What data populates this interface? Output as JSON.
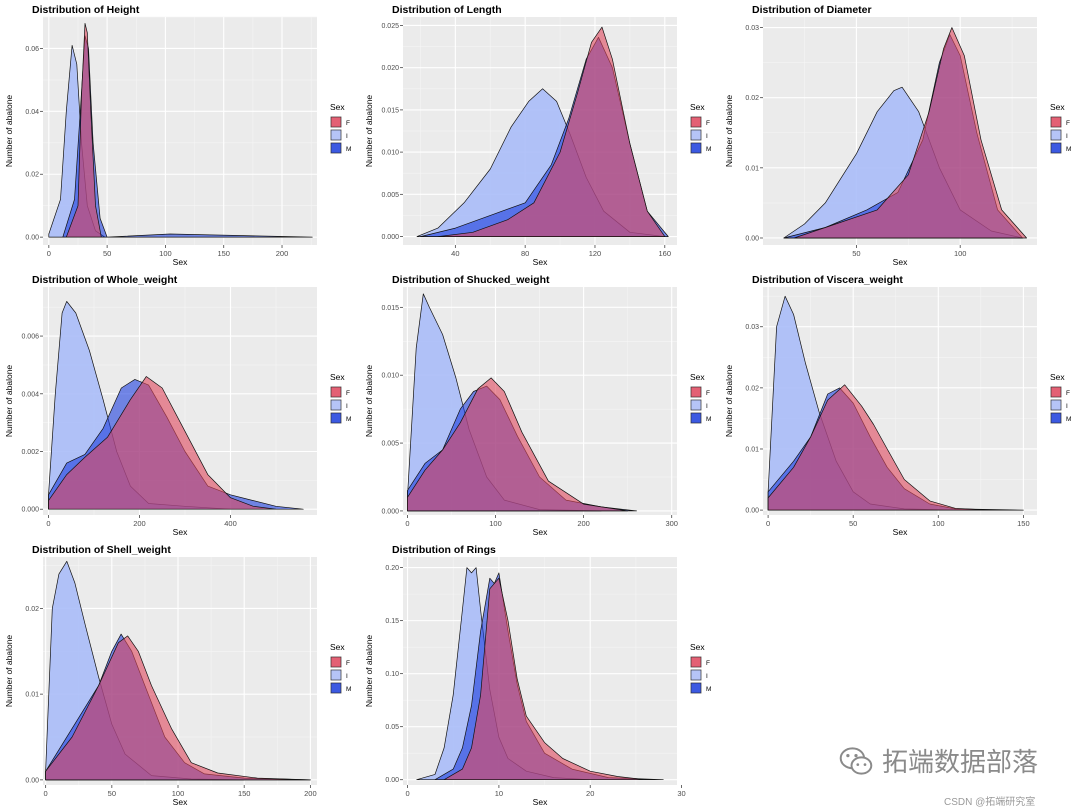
{
  "watermark": {
    "text": "拓端数据部落",
    "csdn": "CSDN @拓端研究室"
  },
  "legend": {
    "title": "Sex",
    "labels": [
      "F",
      "I",
      "M"
    ]
  },
  "colors": {
    "F": "#e0475e",
    "I": "#aabcf8",
    "M": "#1c3ede",
    "panel": "#ebebeb",
    "grid": "#ffffff"
  },
  "chart_data": [
    {
      "type": "area",
      "title": "Distribution of Height",
      "xlabel": "Sex",
      "ylabel": "Number of abalone",
      "xlim": [
        -5,
        230
      ],
      "ylim": [
        -0.0025,
        0.07
      ],
      "xticks": [
        0,
        50,
        100,
        150,
        200
      ],
      "yticks": [
        0,
        0.02,
        0.04,
        0.06
      ],
      "ytick_labels": [
        "0.00",
        "0.02",
        "0.04",
        "0.06"
      ],
      "series": [
        {
          "name": "F",
          "x": [
            15,
            25,
            28,
            31,
            33,
            36,
            40,
            45
          ],
          "y": [
            0,
            0.01,
            0.045,
            0.068,
            0.065,
            0.04,
            0.01,
            0
          ]
        },
        {
          "name": "I",
          "x": [
            0,
            10,
            15,
            20,
            24,
            28,
            33,
            40,
            48
          ],
          "y": [
            0.001,
            0.012,
            0.04,
            0.061,
            0.055,
            0.03,
            0.01,
            0.002,
            0
          ]
        },
        {
          "name": "M",
          "x": [
            12,
            22,
            27,
            31,
            34,
            38,
            44,
            50,
            104,
            226
          ],
          "y": [
            0,
            0.012,
            0.04,
            0.064,
            0.06,
            0.03,
            0.006,
            0,
            0.001,
            0
          ]
        }
      ]
    },
    {
      "type": "area",
      "title": "Distribution of Length",
      "xlabel": "Sex",
      "ylabel": "Number of abalone",
      "xlim": [
        10,
        167
      ],
      "ylim": [
        -0.001,
        0.026
      ],
      "xticks": [
        40,
        80,
        120,
        160
      ],
      "yticks": [
        0,
        0.005,
        0.01,
        0.015,
        0.02,
        0.025
      ],
      "ytick_labels": [
        "0.000",
        "0.005",
        "0.010",
        "0.015",
        "0.020",
        "0.025"
      ],
      "series": [
        {
          "name": "F",
          "x": [
            30,
            50,
            70,
            85,
            100,
            110,
            118,
            124,
            130,
            140,
            150,
            160
          ],
          "y": [
            0,
            0.0005,
            0.002,
            0.004,
            0.01,
            0.017,
            0.023,
            0.0248,
            0.021,
            0.011,
            0.003,
            0
          ]
        },
        {
          "name": "I",
          "x": [
            18,
            30,
            45,
            60,
            72,
            82,
            90,
            98,
            106,
            115,
            125,
            140,
            160
          ],
          "y": [
            0,
            0.001,
            0.004,
            0.008,
            0.013,
            0.016,
            0.0175,
            0.016,
            0.012,
            0.007,
            0.003,
            0.0005,
            0
          ]
        },
        {
          "name": "M",
          "x": [
            20,
            40,
            60,
            80,
            95,
            105,
            115,
            122,
            130,
            140,
            150,
            162
          ],
          "y": [
            0,
            0.001,
            0.0025,
            0.004,
            0.0085,
            0.014,
            0.021,
            0.0236,
            0.02,
            0.011,
            0.003,
            0
          ]
        }
      ]
    },
    {
      "type": "area",
      "title": "Distribution of Diameter",
      "xlabel": "Sex",
      "ylabel": "Number of abalone",
      "xlim": [
        5,
        137
      ],
      "ylim": [
        -0.001,
        0.0315
      ],
      "xticks": [
        50,
        100
      ],
      "yticks": [
        0,
        0.01,
        0.02,
        0.03
      ],
      "ytick_labels": [
        "0.00",
        "0.01",
        "0.02",
        "0.03"
      ],
      "series": [
        {
          "name": "F",
          "x": [
            20,
            40,
            60,
            75,
            85,
            92,
            96,
            102,
            110,
            120,
            132
          ],
          "y": [
            0,
            0.002,
            0.004,
            0.009,
            0.018,
            0.027,
            0.03,
            0.026,
            0.014,
            0.004,
            0
          ]
        },
        {
          "name": "I",
          "x": [
            15,
            25,
            35,
            50,
            60,
            68,
            72,
            80,
            90,
            100,
            115,
            130
          ],
          "y": [
            0,
            0.002,
            0.005,
            0.012,
            0.018,
            0.021,
            0.0215,
            0.018,
            0.01,
            0.004,
            0.001,
            0
          ]
        },
        {
          "name": "M",
          "x": [
            15,
            35,
            55,
            70,
            82,
            90,
            95,
            100,
            108,
            118,
            130
          ],
          "y": [
            0,
            0.0015,
            0.004,
            0.0065,
            0.014,
            0.025,
            0.029,
            0.026,
            0.015,
            0.004,
            0
          ]
        }
      ]
    },
    {
      "type": "area",
      "title": "Distribution of Whole_weight",
      "xlabel": "Sex",
      "ylabel": "Number of abalone",
      "xlim": [
        -12,
        590
      ],
      "ylim": [
        -0.0002,
        0.0077
      ],
      "xticks": [
        0,
        200,
        400
      ],
      "yticks": [
        0,
        0.002,
        0.004,
        0.006
      ],
      "ytick_labels": [
        "0.000",
        "0.002",
        "0.004",
        "0.006"
      ],
      "series": [
        {
          "name": "F",
          "x": [
            0,
            40,
            80,
            130,
            180,
            215,
            250,
            300,
            350,
            400,
            450,
            500
          ],
          "y": [
            0.0003,
            0.0012,
            0.0018,
            0.0025,
            0.0038,
            0.0046,
            0.0042,
            0.0027,
            0.0012,
            0.0004,
            0.0001,
            0
          ]
        },
        {
          "name": "I",
          "x": [
            0,
            15,
            30,
            40,
            60,
            90,
            120,
            150,
            180,
            220,
            300,
            400
          ],
          "y": [
            0.0005,
            0.004,
            0.0068,
            0.0072,
            0.0068,
            0.0055,
            0.0038,
            0.002,
            0.0008,
            0.0002,
            0.0001,
            0
          ]
        },
        {
          "name": "M",
          "x": [
            0,
            40,
            80,
            120,
            160,
            190,
            220,
            260,
            300,
            350,
            400,
            450,
            500,
            560
          ],
          "y": [
            0.0005,
            0.0016,
            0.0019,
            0.0028,
            0.0042,
            0.0045,
            0.0043,
            0.0032,
            0.002,
            0.0008,
            0.0005,
            0.0003,
            0.0001,
            0
          ]
        }
      ]
    },
    {
      "type": "area",
      "title": "Distribution of Shucked_weight",
      "xlabel": "Sex",
      "ylabel": "Number of abalone",
      "xlim": [
        -5,
        306
      ],
      "ylim": [
        -0.0003,
        0.0165
      ],
      "xticks": [
        0,
        100,
        200,
        300
      ],
      "yticks": [
        0,
        0.005,
        0.01,
        0.015
      ],
      "ytick_labels": [
        "0.000",
        "0.005",
        "0.010",
        "0.015"
      ],
      "series": [
        {
          "name": "F",
          "x": [
            0,
            20,
            40,
            60,
            80,
            95,
            110,
            130,
            160,
            200,
            250
          ],
          "y": [
            0.001,
            0.003,
            0.0045,
            0.0065,
            0.009,
            0.0098,
            0.0088,
            0.0058,
            0.0022,
            0.0005,
            0
          ]
        },
        {
          "name": "I",
          "x": [
            0,
            10,
            18,
            25,
            40,
            55,
            70,
            90,
            110,
            150,
            220
          ],
          "y": [
            0.001,
            0.012,
            0.016,
            0.015,
            0.013,
            0.0098,
            0.006,
            0.0025,
            0.0008,
            0.0001,
            0
          ]
        },
        {
          "name": "M",
          "x": [
            0,
            20,
            40,
            60,
            75,
            90,
            105,
            125,
            150,
            180,
            220,
            260
          ],
          "y": [
            0.0015,
            0.0035,
            0.0045,
            0.0075,
            0.0088,
            0.0092,
            0.0082,
            0.0055,
            0.0025,
            0.0008,
            0.0003,
            0
          ]
        }
      ]
    },
    {
      "type": "area",
      "title": "Distribution of Viscera_weight",
      "xlabel": "Sex",
      "ylabel": "Number of abalone",
      "xlim": [
        -3,
        158
      ],
      "ylim": [
        -0.0008,
        0.0365
      ],
      "xticks": [
        0,
        50,
        100,
        150
      ],
      "yticks": [
        0,
        0.01,
        0.02,
        0.03
      ],
      "ytick_labels": [
        "0.00",
        "0.01",
        "0.02",
        "0.03"
      ],
      "series": [
        {
          "name": "F",
          "x": [
            0,
            15,
            25,
            35,
            45,
            55,
            62,
            70,
            80,
            95,
            110,
            130
          ],
          "y": [
            0.002,
            0.007,
            0.012,
            0.018,
            0.0205,
            0.017,
            0.014,
            0.01,
            0.005,
            0.0015,
            0.0003,
            0
          ]
        },
        {
          "name": "I",
          "x": [
            0,
            5,
            10,
            15,
            22,
            30,
            40,
            50,
            60,
            80,
            110
          ],
          "y": [
            0.003,
            0.03,
            0.035,
            0.032,
            0.024,
            0.016,
            0.008,
            0.003,
            0.001,
            0.0002,
            0
          ]
        },
        {
          "name": "M",
          "x": [
            0,
            15,
            25,
            35,
            42,
            50,
            60,
            70,
            80,
            95,
            110,
            150
          ],
          "y": [
            0.003,
            0.008,
            0.012,
            0.019,
            0.02,
            0.0175,
            0.012,
            0.007,
            0.0035,
            0.001,
            0.0002,
            0
          ]
        }
      ]
    },
    {
      "type": "area",
      "title": "Distribution of Shell_weight",
      "xlabel": "Sex",
      "ylabel": "Number of abalone",
      "xlim": [
        -2,
        205
      ],
      "ylim": [
        -0.0006,
        0.026
      ],
      "xticks": [
        0,
        50,
        100,
        150,
        200
      ],
      "yticks": [
        0,
        0.01,
        0.02
      ],
      "ytick_labels": [
        "0.00",
        "0.01",
        "0.02"
      ],
      "series": [
        {
          "name": "F",
          "x": [
            0,
            20,
            40,
            55,
            62,
            70,
            80,
            95,
            110,
            130,
            160,
            200
          ],
          "y": [
            0.001,
            0.005,
            0.011,
            0.016,
            0.0168,
            0.015,
            0.011,
            0.006,
            0.002,
            0.0008,
            0.0002,
            0
          ]
        },
        {
          "name": "I",
          "x": [
            0,
            5,
            10,
            16,
            22,
            30,
            40,
            50,
            60,
            80,
            110,
            150
          ],
          "y": [
            0.001,
            0.02,
            0.024,
            0.0255,
            0.023,
            0.018,
            0.012,
            0.0065,
            0.003,
            0.0005,
            0.0001,
            0
          ]
        },
        {
          "name": "M",
          "x": [
            0,
            20,
            40,
            50,
            57,
            65,
            75,
            90,
            105,
            120,
            150,
            200
          ],
          "y": [
            0.001,
            0.006,
            0.011,
            0.015,
            0.017,
            0.015,
            0.011,
            0.005,
            0.002,
            0.0007,
            0.0002,
            0
          ]
        }
      ]
    },
    {
      "type": "area",
      "title": "Distribution of Rings",
      "xlabel": "Sex",
      "ylabel": "Number of abalone",
      "xlim": [
        -0.5,
        29.5
      ],
      "ylim": [
        -0.005,
        0.21
      ],
      "xticks": [
        0,
        10,
        20,
        30
      ],
      "yticks": [
        0,
        0.05,
        0.1,
        0.15,
        0.2
      ],
      "ytick_labels": [
        "0.00",
        "0.05",
        "0.10",
        "0.15",
        "0.20"
      ],
      "series": [
        {
          "name": "F",
          "x": [
            4,
            6,
            7,
            8,
            9,
            10,
            11,
            12,
            13,
            15,
            17,
            20,
            23,
            26
          ],
          "y": [
            0,
            0.01,
            0.03,
            0.08,
            0.18,
            0.19,
            0.15,
            0.095,
            0.06,
            0.035,
            0.02,
            0.008,
            0.003,
            0
          ]
        },
        {
          "name": "I",
          "x": [
            1,
            3,
            4,
            5,
            6,
            6.5,
            7,
            7.5,
            8,
            9,
            10,
            11,
            13,
            16,
            20
          ],
          "y": [
            0,
            0.005,
            0.03,
            0.08,
            0.16,
            0.2,
            0.195,
            0.2,
            0.16,
            0.085,
            0.04,
            0.02,
            0.008,
            0.002,
            0
          ]
        },
        {
          "name": "M",
          "x": [
            3,
            5,
            6,
            7,
            8,
            9,
            9.5,
            10,
            11,
            12,
            13,
            15,
            18,
            22,
            28
          ],
          "y": [
            0,
            0.01,
            0.03,
            0.07,
            0.14,
            0.19,
            0.185,
            0.195,
            0.14,
            0.09,
            0.055,
            0.025,
            0.01,
            0.002,
            0
          ]
        }
      ]
    }
  ]
}
